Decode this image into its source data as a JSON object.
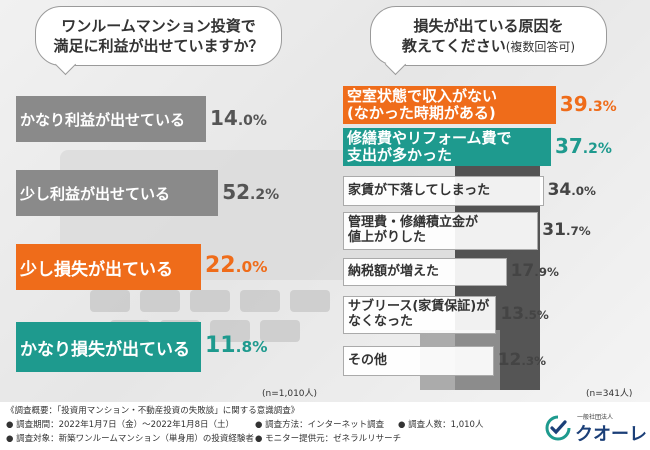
{
  "question1": {
    "text": "ワンルームマンション投資で\n満足に利益が出せていますか？",
    "sample": "(n=1,010人)"
  },
  "question2": {
    "text": "損失が出ている原因を\n教えてください",
    "sub": "(複数回答可)",
    "sample": "(n=341人)"
  },
  "chart_data": [
    {
      "type": "bar",
      "categories": [
        "かなり利益が出せている",
        "少し利益が出せている",
        "少し損失が出ている",
        "かなり損失が出ている"
      ],
      "values": [
        14.0,
        52.2,
        22.0,
        11.8
      ],
      "unit": "%"
    },
    {
      "type": "bar",
      "categories": [
        "空室状態で収入がない\n(なかった時期がある)",
        "修繕費やリフォーム費で\n支出が多かった",
        "家賃が下落してしまった",
        "管理費・修繕積立金が\n値上がりした",
        "納税額が増えた",
        "サブリース(家賃保証)が\nなくなった",
        "その他"
      ],
      "values": [
        39.3,
        37.2,
        34.0,
        31.7,
        17.9,
        13.5,
        12.3
      ],
      "unit": "%"
    }
  ],
  "colors": {
    "orange": "#ef6c1a",
    "teal": "#1e9a8e",
    "gray": "#8a8a8a"
  },
  "footer": {
    "title": "《調査概要：「投資用マンション・不動産投資の失敗談」に関する意識調査》",
    "period": "● 調査期間：2022年1月7日（金）〜2022年1月8日（土）",
    "method": "● 調査方法：インターネット調査",
    "count": "● 調査人数：1,010人",
    "target": "● 調査対象：新築ワンルームマンション（単身用）の投資経験者",
    "provider": "● モニター提供元：ゼネラルリサーチ"
  },
  "logo": {
    "small": "一般社団法人",
    "name": "クオーレ"
  }
}
